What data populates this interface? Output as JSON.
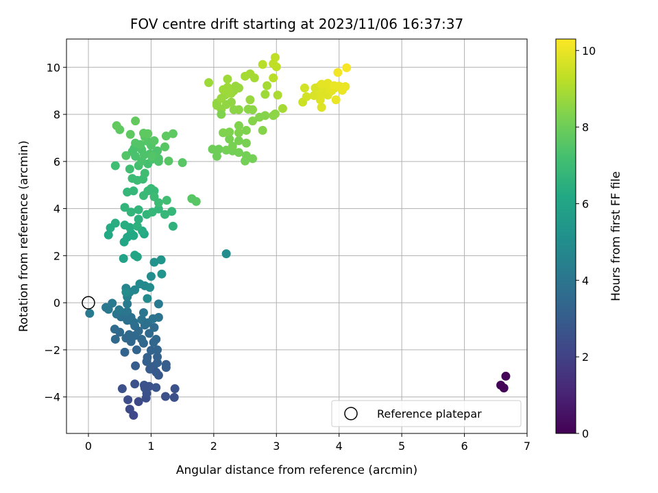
{
  "chart_data": {
    "type": "scatter",
    "title": "FOV centre drift starting at 2023/11/06 16:37:37",
    "xlabel": "Angular distance from reference (arcmin)",
    "ylabel": "Rotation from reference (arcmin)",
    "xlim": [
      -0.35,
      7.0
    ],
    "ylim": [
      -5.55,
      11.2
    ],
    "xticks": [
      "0",
      "1",
      "2",
      "3",
      "4",
      "5",
      "6",
      "7"
    ],
    "yticks": [
      "−4",
      "−2",
      "0",
      "2",
      "4",
      "6",
      "8",
      "10"
    ],
    "grid": true,
    "colorbar": {
      "label": "Hours from first FF file",
      "range": [
        0,
        10.3
      ],
      "ticks": [
        "0",
        "2",
        "4",
        "6",
        "8",
        "10"
      ],
      "colormap": "viridis"
    },
    "legend": {
      "position": "bottom-right",
      "entries": [
        "Reference platepar"
      ]
    },
    "reference_point": {
      "x": 0,
      "y": 0
    },
    "series": [
      {
        "points": [
          [
            6.66,
            -3.12,
            0.1
          ],
          [
            6.58,
            -3.5,
            0.1
          ],
          [
            6.63,
            -3.62,
            0.1
          ],
          [
            0.72,
            -4.78,
            2.2
          ],
          [
            0.66,
            -4.52,
            2.3
          ],
          [
            0.63,
            -4.12,
            2.4
          ],
          [
            0.8,
            -4.2,
            2.3
          ],
          [
            0.92,
            -4.05,
            2.4
          ],
          [
            0.93,
            -3.85,
            2.5
          ],
          [
            0.89,
            -3.5,
            2.6
          ],
          [
            0.74,
            -3.45,
            2.6
          ],
          [
            0.54,
            -3.65,
            2.5
          ],
          [
            0.9,
            -3.62,
            2.6
          ],
          [
            0.97,
            -3.55,
            2.6
          ],
          [
            1.08,
            -3.6,
            2.7
          ],
          [
            1.23,
            -3.98,
            2.5
          ],
          [
            1.38,
            -3.65,
            2.6
          ],
          [
            1.37,
            -4.02,
            2.5
          ],
          [
            1.12,
            -3.08,
            2.8
          ],
          [
            1.24,
            -2.75,
            3.0
          ],
          [
            1.24,
            -2.62,
            3.0
          ],
          [
            0.98,
            -2.82,
            3.0
          ],
          [
            1.04,
            -2.7,
            3.0
          ],
          [
            1.08,
            -2.95,
            2.9
          ],
          [
            0.93,
            -2.5,
            3.1
          ],
          [
            0.75,
            -2.68,
            3.0
          ],
          [
            1.1,
            -2.55,
            3.1
          ],
          [
            0.94,
            -2.32,
            3.2
          ],
          [
            1.1,
            -2.3,
            3.2
          ],
          [
            0.58,
            -2.1,
            3.3
          ],
          [
            1.1,
            -2.0,
            3.3
          ],
          [
            1.0,
            -2.02,
            3.3
          ],
          [
            0.77,
            -2.0,
            3.3
          ],
          [
            0.88,
            -1.72,
            3.4
          ],
          [
            1.04,
            -1.68,
            3.4
          ],
          [
            1.08,
            -1.55,
            3.4
          ],
          [
            0.68,
            -1.65,
            3.4
          ],
          [
            0.6,
            -1.5,
            3.5
          ],
          [
            0.65,
            -1.35,
            3.5
          ],
          [
            0.5,
            -1.25,
            3.5
          ],
          [
            0.43,
            -1.55,
            3.5
          ],
          [
            0.42,
            -1.12,
            3.6
          ],
          [
            0.74,
            -1.4,
            3.5
          ],
          [
            0.85,
            -1.55,
            3.5
          ],
          [
            0.97,
            -1.3,
            3.6
          ],
          [
            1.05,
            -1.05,
            3.6
          ],
          [
            0.74,
            -0.98,
            3.7
          ],
          [
            0.8,
            -1.2,
            3.6
          ],
          [
            0.9,
            -0.95,
            3.7
          ],
          [
            0.62,
            -0.75,
            3.8
          ],
          [
            0.52,
            -0.6,
            3.8
          ],
          [
            0.45,
            -0.48,
            3.9
          ],
          [
            0.58,
            -0.42,
            3.9
          ],
          [
            0.68,
            -0.62,
            3.8
          ],
          [
            0.72,
            -0.82,
            3.8
          ],
          [
            0.85,
            -0.72,
            3.9
          ],
          [
            0.95,
            -0.85,
            3.8
          ],
          [
            1.03,
            -0.68,
            3.9
          ],
          [
            1.12,
            -0.62,
            3.9
          ],
          [
            1.12,
            -0.05,
            4.2
          ],
          [
            0.88,
            -0.42,
            4.0
          ],
          [
            0.62,
            -0.38,
            4.0
          ],
          [
            0.32,
            -0.28,
            4.1
          ],
          [
            0.28,
            -0.2,
            4.1
          ],
          [
            0.38,
            -0.02,
            4.2
          ],
          [
            0.49,
            -0.3,
            4.1
          ],
          [
            0.62,
            -0.05,
            4.2
          ],
          [
            0.02,
            -0.45,
            4.2
          ],
          [
            0.62,
            0.25,
            4.5
          ],
          [
            0.66,
            0.45,
            4.6
          ],
          [
            0.6,
            0.62,
            4.6
          ],
          [
            0.74,
            0.55,
            4.7
          ],
          [
            0.9,
            0.72,
            4.8
          ],
          [
            0.82,
            0.8,
            4.8
          ],
          [
            0.98,
            0.65,
            4.9
          ],
          [
            0.94,
            0.18,
            4.9
          ],
          [
            1.0,
            1.12,
            5.0
          ],
          [
            1.05,
            1.72,
            5.2
          ],
          [
            1.16,
            1.82,
            5.3
          ],
          [
            1.17,
            1.22,
            5.3
          ],
          [
            0.6,
            0.45,
            4.9
          ],
          [
            2.2,
            2.08,
            5.0
          ],
          [
            0.56,
            1.88,
            5.9
          ],
          [
            0.74,
            2.02,
            6.0
          ],
          [
            0.78,
            1.95,
            6.0
          ],
          [
            0.57,
            2.58,
            6.1
          ],
          [
            0.62,
            2.78,
            6.1
          ],
          [
            0.68,
            2.95,
            6.2
          ],
          [
            0.72,
            2.85,
            6.2
          ],
          [
            0.89,
            2.92,
            6.2
          ],
          [
            0.86,
            3.05,
            6.3
          ],
          [
            0.66,
            3.2,
            6.3
          ],
          [
            0.35,
            3.18,
            6.3
          ],
          [
            0.32,
            2.88,
            6.2
          ],
          [
            0.43,
            3.38,
            6.4
          ],
          [
            0.58,
            3.3,
            6.4
          ],
          [
            0.78,
            3.25,
            6.5
          ],
          [
            0.8,
            3.55,
            6.5
          ],
          [
            0.58,
            4.05,
            6.7
          ],
          [
            0.68,
            3.85,
            6.7
          ],
          [
            0.8,
            3.95,
            6.7
          ],
          [
            0.93,
            3.75,
            6.7
          ],
          [
            1.02,
            3.85,
            6.8
          ],
          [
            1.12,
            3.98,
            6.8
          ],
          [
            1.22,
            3.75,
            6.8
          ],
          [
            1.33,
            3.88,
            6.8
          ],
          [
            1.35,
            3.25,
            6.6
          ],
          [
            0.62,
            4.7,
            6.8
          ],
          [
            0.72,
            4.75,
            6.8
          ],
          [
            0.88,
            4.55,
            6.9
          ],
          [
            0.95,
            4.75,
            6.9
          ],
          [
            1.05,
            4.75,
            6.9
          ],
          [
            1.05,
            4.5,
            7.0
          ],
          [
            1.12,
            4.25,
            7.0
          ],
          [
            1.25,
            4.35,
            7.1
          ],
          [
            1.0,
            4.85,
            6.9
          ],
          [
            0.78,
            5.2,
            7.0
          ],
          [
            0.7,
            5.28,
            7.0
          ],
          [
            0.87,
            5.25,
            7.0
          ],
          [
            0.9,
            5.5,
            7.1
          ],
          [
            0.66,
            5.68,
            7.1
          ],
          [
            0.43,
            5.82,
            7.1
          ],
          [
            0.8,
            5.82,
            7.2
          ],
          [
            0.95,
            5.9,
            7.2
          ],
          [
            1.02,
            6.1,
            7.3
          ],
          [
            0.85,
            6.02,
            7.3
          ],
          [
            0.75,
            6.22,
            7.3
          ],
          [
            0.7,
            6.42,
            7.3
          ],
          [
            0.73,
            6.55,
            7.3
          ],
          [
            0.85,
            6.5,
            7.4
          ],
          [
            0.89,
            6.28,
            7.4
          ],
          [
            0.98,
            6.32,
            7.4
          ],
          [
            1.07,
            6.35,
            7.4
          ],
          [
            1.12,
            6.12,
            7.4
          ],
          [
            1.1,
            6.45,
            7.4
          ],
          [
            1.0,
            6.68,
            7.5
          ],
          [
            0.95,
            6.85,
            7.5
          ],
          [
            0.83,
            6.72,
            7.5
          ],
          [
            0.75,
            6.78,
            7.5
          ],
          [
            0.6,
            6.25,
            7.5
          ],
          [
            1.28,
            6.02,
            7.6
          ],
          [
            1.5,
            5.95,
            7.6
          ],
          [
            1.22,
            6.62,
            7.6
          ],
          [
            1.24,
            7.08,
            7.7
          ],
          [
            1.35,
            7.18,
            7.7
          ],
          [
            1.05,
            6.88,
            7.6
          ],
          [
            0.9,
            7.05,
            7.6
          ],
          [
            0.95,
            7.18,
            7.7
          ],
          [
            0.88,
            7.2,
            7.7
          ],
          [
            0.67,
            7.15,
            7.7
          ],
          [
            0.5,
            7.35,
            7.7
          ],
          [
            0.45,
            7.52,
            7.8
          ],
          [
            0.75,
            7.72,
            7.8
          ],
          [
            1.02,
            6.22,
            7.5
          ],
          [
            1.65,
            4.42,
            7.6
          ],
          [
            1.72,
            4.3,
            7.6
          ],
          [
            1.12,
            6.0,
            7.4
          ],
          [
            2.05,
            6.22,
            8.0
          ],
          [
            1.98,
            6.52,
            8.0
          ],
          [
            2.08,
            6.52,
            8.0
          ],
          [
            2.2,
            6.48,
            8.1
          ],
          [
            2.3,
            6.45,
            8.1
          ],
          [
            2.4,
            6.38,
            8.1
          ],
          [
            2.52,
            6.25,
            8.1
          ],
          [
            2.5,
            6.02,
            8.1
          ],
          [
            2.62,
            6.12,
            8.1
          ],
          [
            2.3,
            6.65,
            8.2
          ],
          [
            2.52,
            6.78,
            8.2
          ],
          [
            2.4,
            6.88,
            8.2
          ],
          [
            2.25,
            6.95,
            8.2
          ],
          [
            2.4,
            7.22,
            8.3
          ],
          [
            2.25,
            7.25,
            8.3
          ],
          [
            2.15,
            7.22,
            8.3
          ],
          [
            2.4,
            7.52,
            8.3
          ],
          [
            2.52,
            7.32,
            8.3
          ],
          [
            2.78,
            7.32,
            8.4
          ],
          [
            2.62,
            7.72,
            8.4
          ],
          [
            2.73,
            7.88,
            8.4
          ],
          [
            2.82,
            7.95,
            8.4
          ],
          [
            2.95,
            7.95,
            8.5
          ],
          [
            2.98,
            8.02,
            8.5
          ],
          [
            2.55,
            8.22,
            8.5
          ],
          [
            2.62,
            8.2,
            8.5
          ],
          [
            2.4,
            8.2,
            8.5
          ],
          [
            2.32,
            8.2,
            8.5
          ],
          [
            2.12,
            8.22,
            8.6
          ],
          [
            2.05,
            8.38,
            8.6
          ],
          [
            2.05,
            8.48,
            8.6
          ],
          [
            2.2,
            8.42,
            8.6
          ],
          [
            2.28,
            8.52,
            8.6
          ],
          [
            2.12,
            8.68,
            8.7
          ],
          [
            2.18,
            8.82,
            8.7
          ],
          [
            2.28,
            8.9,
            8.7
          ],
          [
            2.32,
            9.0,
            8.7
          ],
          [
            2.4,
            9.12,
            8.7
          ],
          [
            2.35,
            9.2,
            8.7
          ],
          [
            2.22,
            9.15,
            8.8
          ],
          [
            2.15,
            9.05,
            8.8
          ],
          [
            2.22,
            9.5,
            8.8
          ],
          [
            1.92,
            9.35,
            8.8
          ],
          [
            2.5,
            9.62,
            8.9
          ],
          [
            2.58,
            9.72,
            8.9
          ],
          [
            2.65,
            9.55,
            8.9
          ],
          [
            2.58,
            8.62,
            8.7
          ],
          [
            2.82,
            8.85,
            8.8
          ],
          [
            2.85,
            9.22,
            8.9
          ],
          [
            3.02,
            8.82,
            9.0
          ],
          [
            3.1,
            8.25,
            8.9
          ],
          [
            2.12,
            8.0,
            8.3
          ],
          [
            2.25,
            8.9,
            8.8
          ],
          [
            2.78,
            10.12,
            9.2
          ],
          [
            2.95,
            10.15,
            9.3
          ],
          [
            2.98,
            10.42,
            9.3
          ],
          [
            3.0,
            10.02,
            9.3
          ],
          [
            2.95,
            9.55,
            9.2
          ],
          [
            3.42,
            8.52,
            9.5
          ],
          [
            3.48,
            8.75,
            9.6
          ],
          [
            3.45,
            9.12,
            9.6
          ],
          [
            3.62,
            9.12,
            9.7
          ],
          [
            3.7,
            9.22,
            9.7
          ],
          [
            3.6,
            8.8,
            9.7
          ],
          [
            3.7,
            8.62,
            9.8
          ],
          [
            3.72,
            8.92,
            9.8
          ],
          [
            3.82,
            8.82,
            9.8
          ],
          [
            3.82,
            9.05,
            9.8
          ],
          [
            3.88,
            9.0,
            9.9
          ],
          [
            3.92,
            9.1,
            9.9
          ],
          [
            3.72,
            9.28,
            9.9
          ],
          [
            3.82,
            9.32,
            9.9
          ],
          [
            3.72,
            8.3,
            9.8
          ],
          [
            3.92,
            9.22,
            10.0
          ],
          [
            4.0,
            9.2,
            10.0
          ],
          [
            4.05,
            9.15,
            10.0
          ],
          [
            4.1,
            9.18,
            10.0
          ],
          [
            4.05,
            9.02,
            10.0
          ],
          [
            3.95,
            8.62,
            10.0
          ],
          [
            3.98,
            9.78,
            10.1
          ],
          [
            4.12,
            9.98,
            10.2
          ]
        ]
      }
    ]
  }
}
